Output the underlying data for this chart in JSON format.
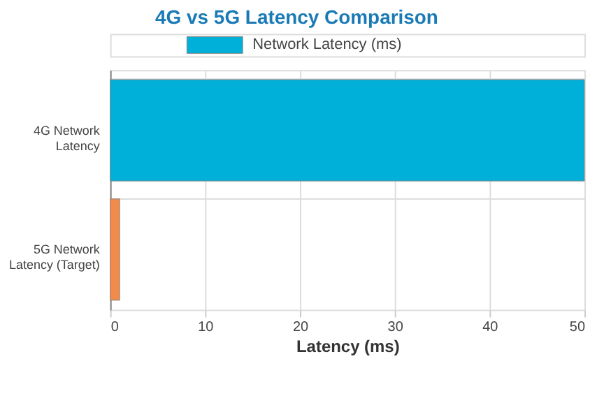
{
  "chart_data": {
    "type": "bar",
    "orientation": "horizontal",
    "title": "4G vs 5G Latency Comparison",
    "xlabel": "Latency (ms)",
    "categories": [
      "4G Network Latency",
      "5G Network Latency (Target)"
    ],
    "series": [
      {
        "name": "Network Latency (ms)",
        "color": "#00b0d8",
        "colors": [
          "#00b0d8",
          "#f28a4b"
        ],
        "values": [
          50,
          1
        ]
      }
    ],
    "xlim": [
      0,
      50
    ],
    "xticks": [
      0,
      10,
      20,
      30,
      40,
      50
    ],
    "grid": true,
    "legend": "top"
  }
}
